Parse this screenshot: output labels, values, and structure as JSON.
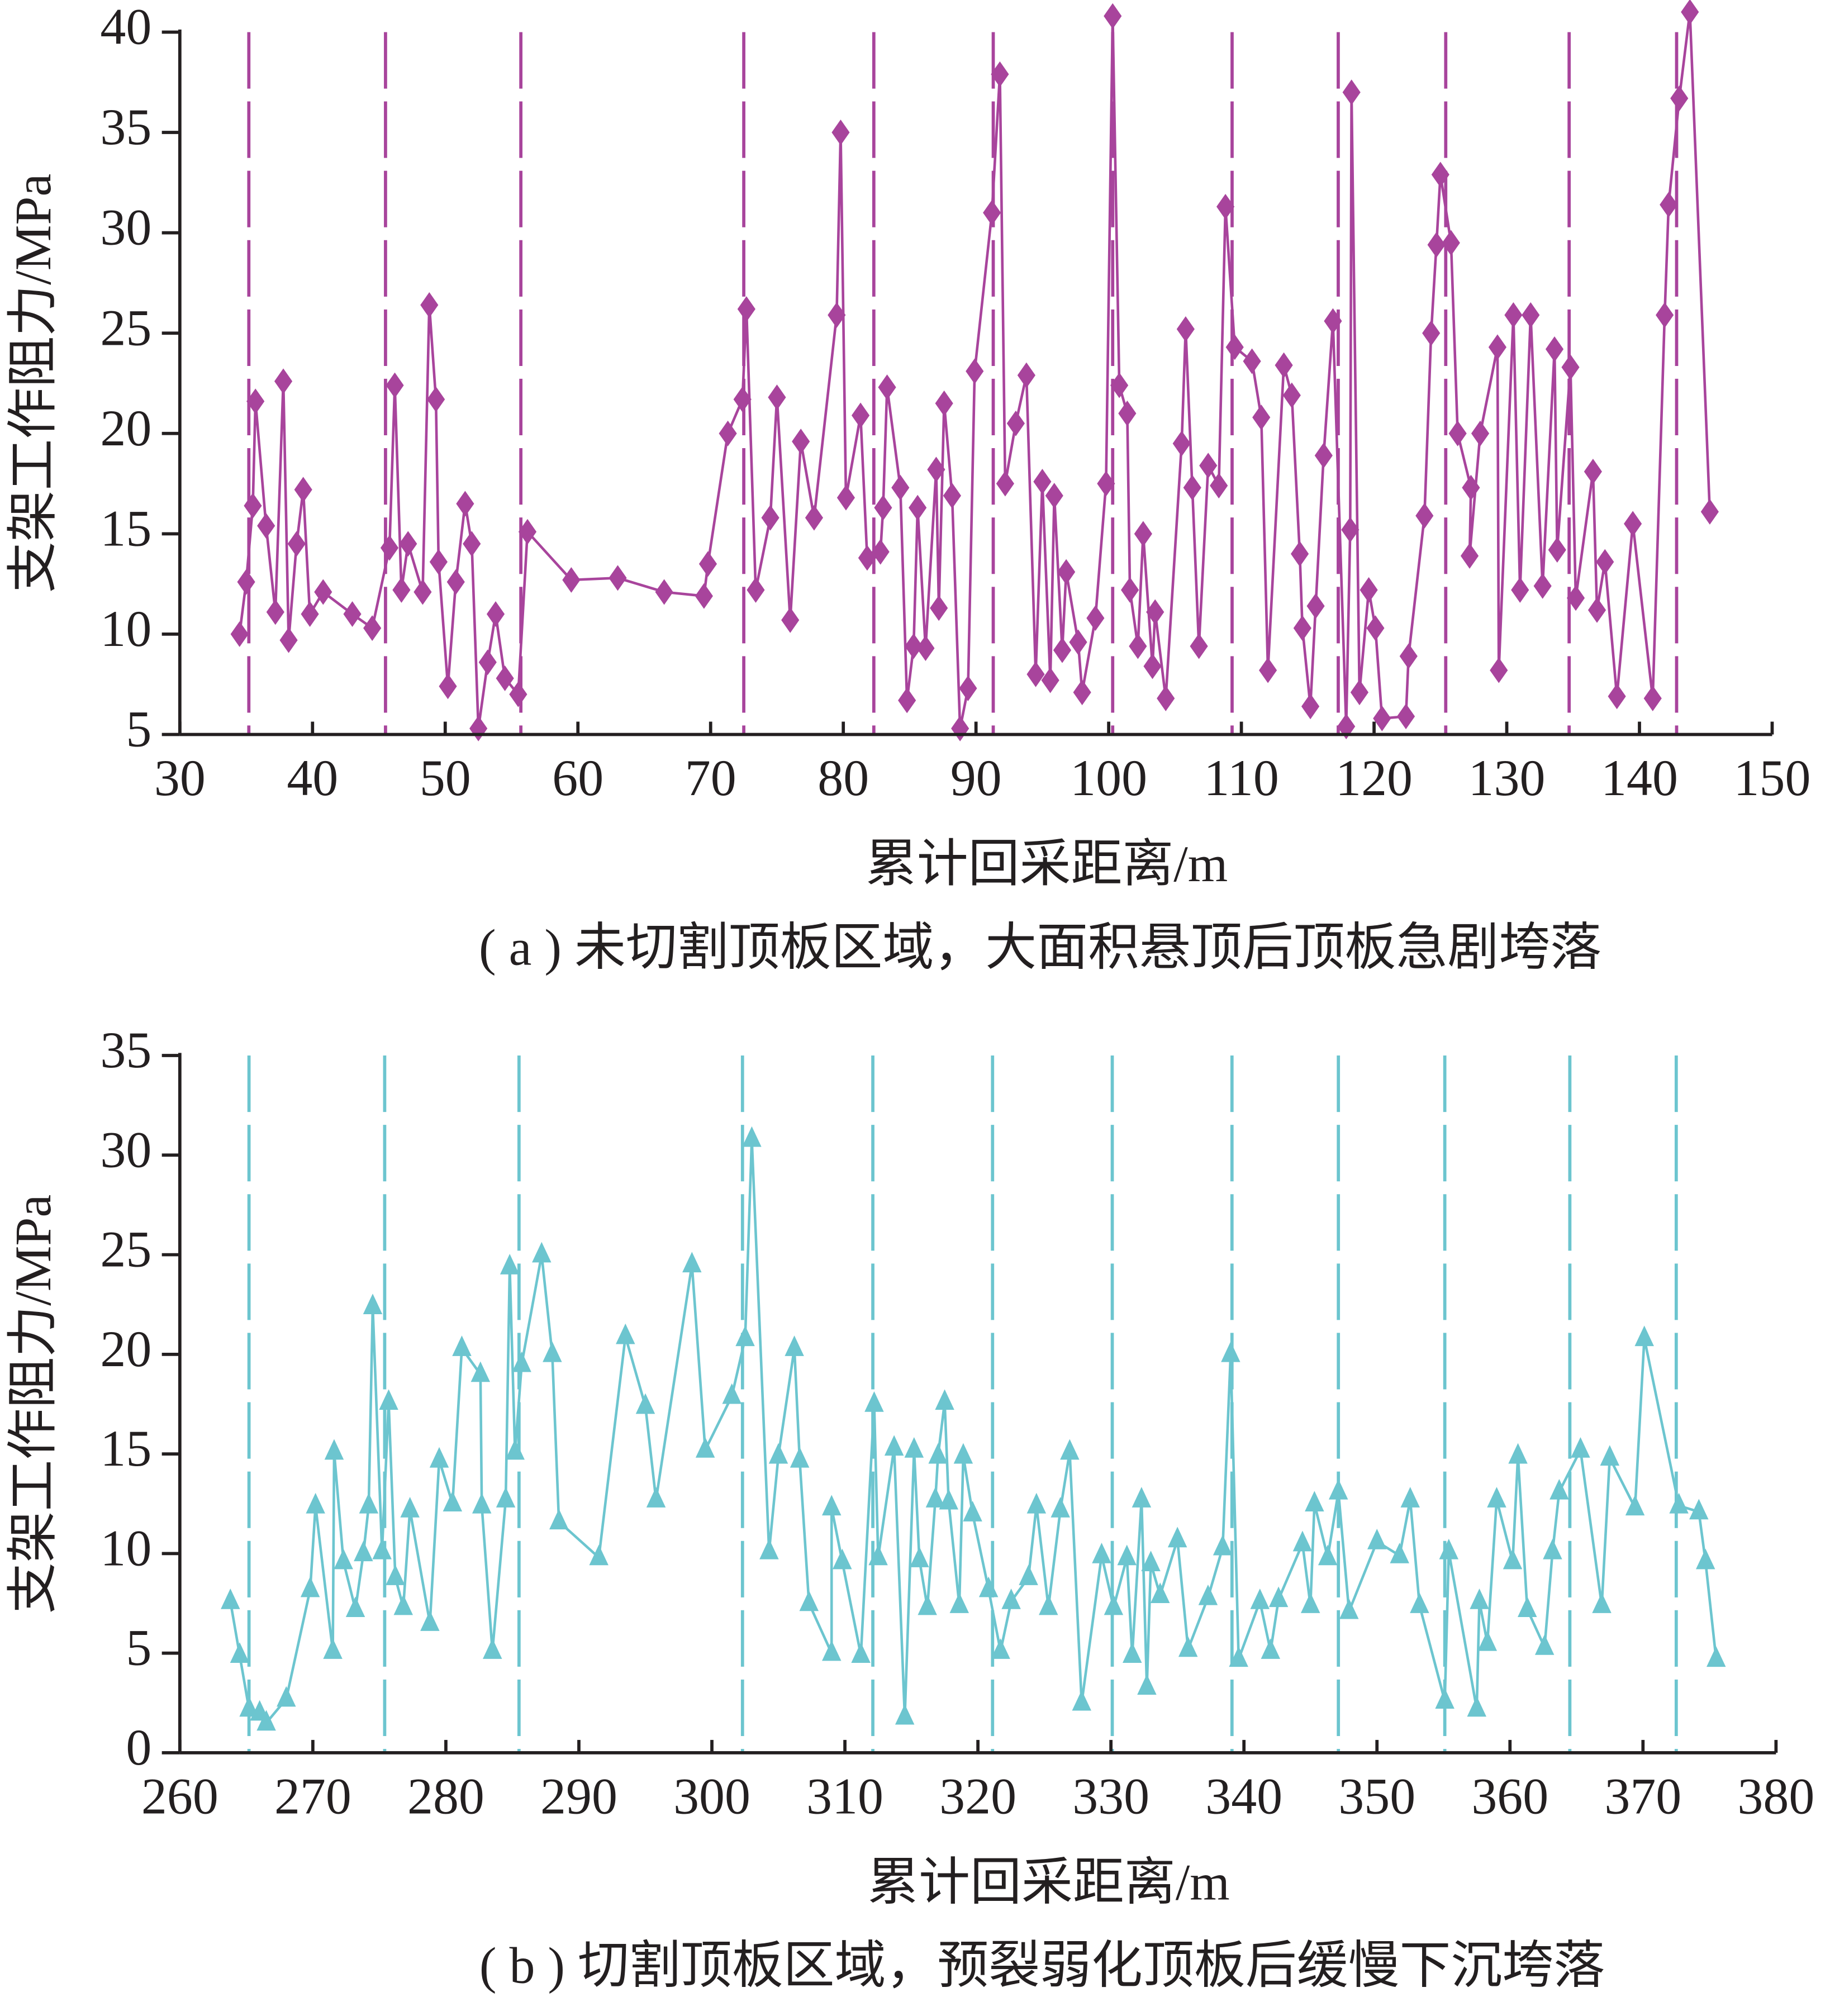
{
  "chart_data": [
    {
      "type": "line",
      "marker": "diamond",
      "color": "#a8449c",
      "ylabel": "支架工作阻力/MPa",
      "xlabel": "累计回采距离/m",
      "caption": "( a ) 未切割顶板区域，大面积悬顶后顶板急剧垮落",
      "xlim": [
        30,
        150
      ],
      "xticks": [
        30,
        40,
        50,
        60,
        70,
        80,
        90,
        100,
        110,
        120,
        130,
        140,
        150
      ],
      "ylim": [
        5,
        40
      ],
      "yticks": [
        5,
        10,
        15,
        20,
        25,
        30,
        35,
        40
      ],
      "vlines": [
        35.2,
        45.5,
        55.7,
        72.5,
        82.3,
        91.3,
        100.3,
        109.3,
        117.3,
        125.4,
        134.7,
        142.8
      ],
      "x": [
        34.5,
        35,
        35.5,
        35.7,
        36.5,
        37.2,
        37.8,
        38.2,
        38.8,
        39.3,
        39.8,
        40.8,
        43,
        44.5,
        45.8,
        46.2,
        46.7,
        47.2,
        48.3,
        48.8,
        49.3,
        49.5,
        50.2,
        50.8,
        51.5,
        52,
        52.5,
        53.2,
        53.8,
        54.5,
        55.5,
        56.2,
        59.5,
        63,
        66.5,
        69.5,
        69.8,
        71.3,
        72.4,
        72.7,
        73.4,
        74.5,
        75,
        76,
        76.8,
        77.8,
        79.5,
        79.8,
        80.2,
        81.3,
        81.8,
        82.8,
        83,
        83.3,
        84.3,
        84.8,
        85.3,
        85.6,
        86.2,
        87,
        87.2,
        87.6,
        88.2,
        88.8,
        89.4,
        89.9,
        91.2,
        91.8,
        92.2,
        93,
        93.8,
        94.5,
        95,
        95.6,
        95.9,
        96.5,
        96.8,
        97.7,
        98,
        99,
        99.8,
        100.3,
        100.8,
        101.4,
        101.6,
        102.2,
        102.6,
        103.3,
        103.5,
        104.3,
        105.5,
        105.8,
        106.3,
        106.8,
        107.5,
        108.3,
        108.8,
        109.5,
        110.8,
        111.5,
        112,
        113.2,
        113.8,
        114.4,
        114.6,
        115.2,
        115.6,
        116.2,
        116.9,
        117.9,
        118.2,
        118.3,
        118.9,
        119.6,
        120.1,
        120.6,
        122.4,
        122.6,
        123.8,
        124.3,
        124.7,
        125,
        125.8,
        126.3,
        127.3,
        127.2,
        128,
        129.3,
        129.4,
        130.5,
        131,
        131.8,
        132.7,
        133.6,
        133.8,
        134.8,
        135.2,
        136.5,
        136.8,
        137.4,
        138.3,
        139.5,
        141,
        141.9,
        142.2,
        143,
        143.8,
        145.3
      ],
      "values": [
        10,
        12.6,
        16.4,
        21.6,
        15.4,
        11.1,
        22.6,
        9.7,
        14.5,
        17.2,
        11,
        12.1,
        11,
        10.3,
        14.3,
        22.4,
        12.2,
        14.5,
        12.1,
        26.4,
        21.7,
        13.6,
        7.4,
        12.6,
        16.5,
        14.5,
        5.3,
        8.6,
        11,
        7.8,
        7,
        15.1,
        12.7,
        12.8,
        12.1,
        11.9,
        13.5,
        20,
        21.7,
        26.2,
        12.2,
        15.8,
        21.8,
        10.7,
        19.6,
        15.8,
        25.9,
        35,
        16.8,
        20.9,
        13.8,
        14.1,
        16.3,
        22.3,
        17.3,
        6.7,
        9.4,
        16.3,
        9.3,
        18.2,
        11.3,
        21.5,
        16.9,
        5.3,
        7.3,
        23.1,
        31,
        37.9,
        17.5,
        20.5,
        22.9,
        8,
        17.6,
        7.7,
        16.9,
        9.2,
        13.1,
        9.6,
        7.1,
        10.8,
        17.5,
        40.8,
        22.4,
        21,
        12.2,
        9.4,
        15,
        8.4,
        11.1,
        6.8,
        19.5,
        25.2,
        17.3,
        9.4,
        18.4,
        17.4,
        31.3,
        24.3,
        23.6,
        20.8,
        8.2,
        23.4,
        21.9,
        14,
        10.3,
        6.4,
        11.4,
        18.9,
        25.6,
        5.4,
        15.2,
        37,
        7.1,
        12.2,
        10.3,
        5.8,
        5.9,
        8.9,
        15.9,
        25,
        29.4,
        32.9,
        29.5,
        20,
        17.3,
        13.9,
        20,
        24.3,
        8.2,
        25.9,
        12.2,
        25.9,
        12.4,
        24.2,
        14.2,
        23.3,
        11.8,
        18.1,
        11.2,
        13.6,
        6.9,
        15.5,
        6.8,
        25.9,
        31.4,
        36.7,
        41,
        16.1
      ]
    },
    {
      "type": "line",
      "marker": "triangle",
      "color": "#6cc5cf",
      "ylabel": "支架工作阻力/MPa",
      "xlabel": "累计回采距离/m",
      "caption": "( b ) 切割顶板区域，预裂弱化顶板后缓慢下沉垮落",
      "xlim": [
        260,
        380
      ],
      "xticks": [
        260,
        270,
        280,
        290,
        300,
        310,
        320,
        330,
        340,
        350,
        360,
        370,
        380
      ],
      "ylim": [
        0,
        35
      ],
      "yticks": [
        0,
        5,
        10,
        15,
        20,
        25,
        30,
        35
      ],
      "vlines": [
        265.2,
        275.4,
        285.5,
        302.3,
        312.1,
        321.1,
        330.1,
        339.1,
        347.1,
        355.1,
        364.5,
        372.5
      ],
      "x": [
        263.8,
        264.5,
        265.2,
        266,
        266.5,
        268,
        269.8,
        270.2,
        271.5,
        271.6,
        272.3,
        273.2,
        273.8,
        274.2,
        274.5,
        275.2,
        275.7,
        276.2,
        276.8,
        277.3,
        278.8,
        279.5,
        280.5,
        281.2,
        282.6,
        282.7,
        283.5,
        284.5,
        284.8,
        285.2,
        285.7,
        287.2,
        288,
        288.5,
        291.5,
        293.5,
        295,
        295.8,
        298.5,
        299.5,
        301.5,
        302.5,
        303,
        304.3,
        305,
        306.2,
        306.6,
        307.3,
        309,
        309,
        309.8,
        311.2,
        312.2,
        312.5,
        313.7,
        314.5,
        315.2,
        315.6,
        316.2,
        316.8,
        317,
        317.5,
        317.8,
        318.6,
        318.9,
        319.6,
        320.8,
        321.7,
        322.5,
        323.8,
        324.4,
        325.3,
        326.2,
        326.9,
        327.8,
        329.3,
        330.2,
        331.2,
        331.6,
        332.3,
        332.7,
        333,
        333.7,
        335,
        335.8,
        337.3,
        338.4,
        339,
        339.6,
        341.2,
        342,
        342.6,
        344.4,
        345,
        345.3,
        346.3,
        347.1,
        347.9,
        350,
        351.7,
        352.5,
        353.2,
        355.1,
        355.4,
        357.5,
        357.7,
        358.3,
        359,
        360.2,
        360.6,
        361.3,
        362.6,
        363.2,
        363.7,
        365.3,
        366.9,
        367.5,
        369.4,
        370.1,
        372.7,
        374.2,
        374.7,
        375.5
      ],
      "values": [
        7.6,
        4.9,
        2.2,
        2,
        1.5,
        2.7,
        8.2,
        12.4,
        5.1,
        15.1,
        9.6,
        7.2,
        10,
        12.4,
        22.4,
        10.1,
        17.6,
        8.8,
        7.3,
        12.2,
        6.5,
        14.7,
        12.5,
        20.3,
        19,
        12.4,
        5.1,
        12.7,
        24.4,
        15.1,
        19.5,
        25,
        20,
        11.6,
        9.8,
        20.9,
        17.4,
        12.7,
        24.5,
        15.2,
        17.9,
        20.8,
        30.8,
        10.1,
        14.9,
        20.3,
        14.7,
        7.5,
        5,
        12.3,
        9.6,
        4.9,
        17.5,
        9.8,
        15.3,
        1.8,
        15.2,
        9.7,
        7.3,
        12.7,
        14.9,
        17.6,
        12.6,
        7.4,
        14.9,
        12,
        8.2,
        5.1,
        7.6,
        8.8,
        12.4,
        7.3,
        12.2,
        15.1,
        2.5,
        9.9,
        7.3,
        9.8,
        4.9,
        12.7,
        3.3,
        9.5,
        7.9,
        10.7,
        5.2,
        7.8,
        10.3,
        20,
        4.7,
        7.6,
        5.1,
        7.7,
        10.5,
        7.4,
        12.5,
        9.8,
        13.1,
        7.1,
        10.6,
        9.9,
        12.7,
        7.4,
        2.6,
        10.1,
        2.2,
        7.6,
        5.5,
        12.7,
        9.6,
        14.9,
        7.2,
        5.3,
        10.1,
        13.1,
        15.2,
        7.4,
        14.8,
        12.3,
        20.8,
        12.4,
        12.1,
        9.6,
        4.7
      ]
    }
  ]
}
